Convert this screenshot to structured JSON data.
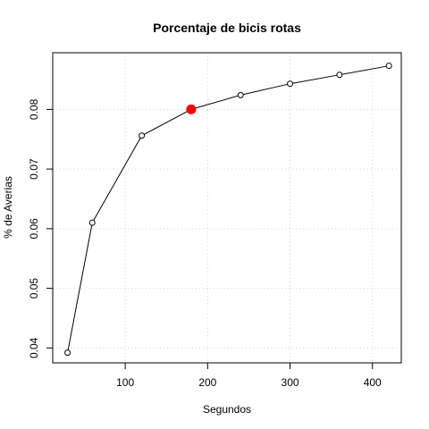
{
  "chart_data": {
    "type": "line",
    "title": "Porcentaje de bicis rotas",
    "xlabel": "Segundos",
    "ylabel": "% de Averias",
    "xlim": [
      12,
      435
    ],
    "ylim": [
      0.0375,
      0.0895
    ],
    "x_ticks": [
      100,
      200,
      300,
      400
    ],
    "y_ticks": [
      0.04,
      0.05,
      0.06,
      0.07,
      0.08
    ],
    "x_tick_labels": [
      "100",
      "200",
      "300",
      "400"
    ],
    "y_tick_labels": [
      "0.04",
      "0.05",
      "0.06",
      "0.07",
      "0.08"
    ],
    "grid": true,
    "series": [
      {
        "x": [
          30,
          60,
          120,
          180,
          240,
          300,
          360,
          420
        ],
        "y": [
          0.0392,
          0.061,
          0.0756,
          0.08,
          0.0824,
          0.0843,
          0.0858,
          0.0873
        ],
        "line_color": "#000000",
        "marker": "open-circle"
      }
    ],
    "highlight": {
      "x": 180,
      "y": 0.08,
      "color": "#ff0000"
    }
  }
}
